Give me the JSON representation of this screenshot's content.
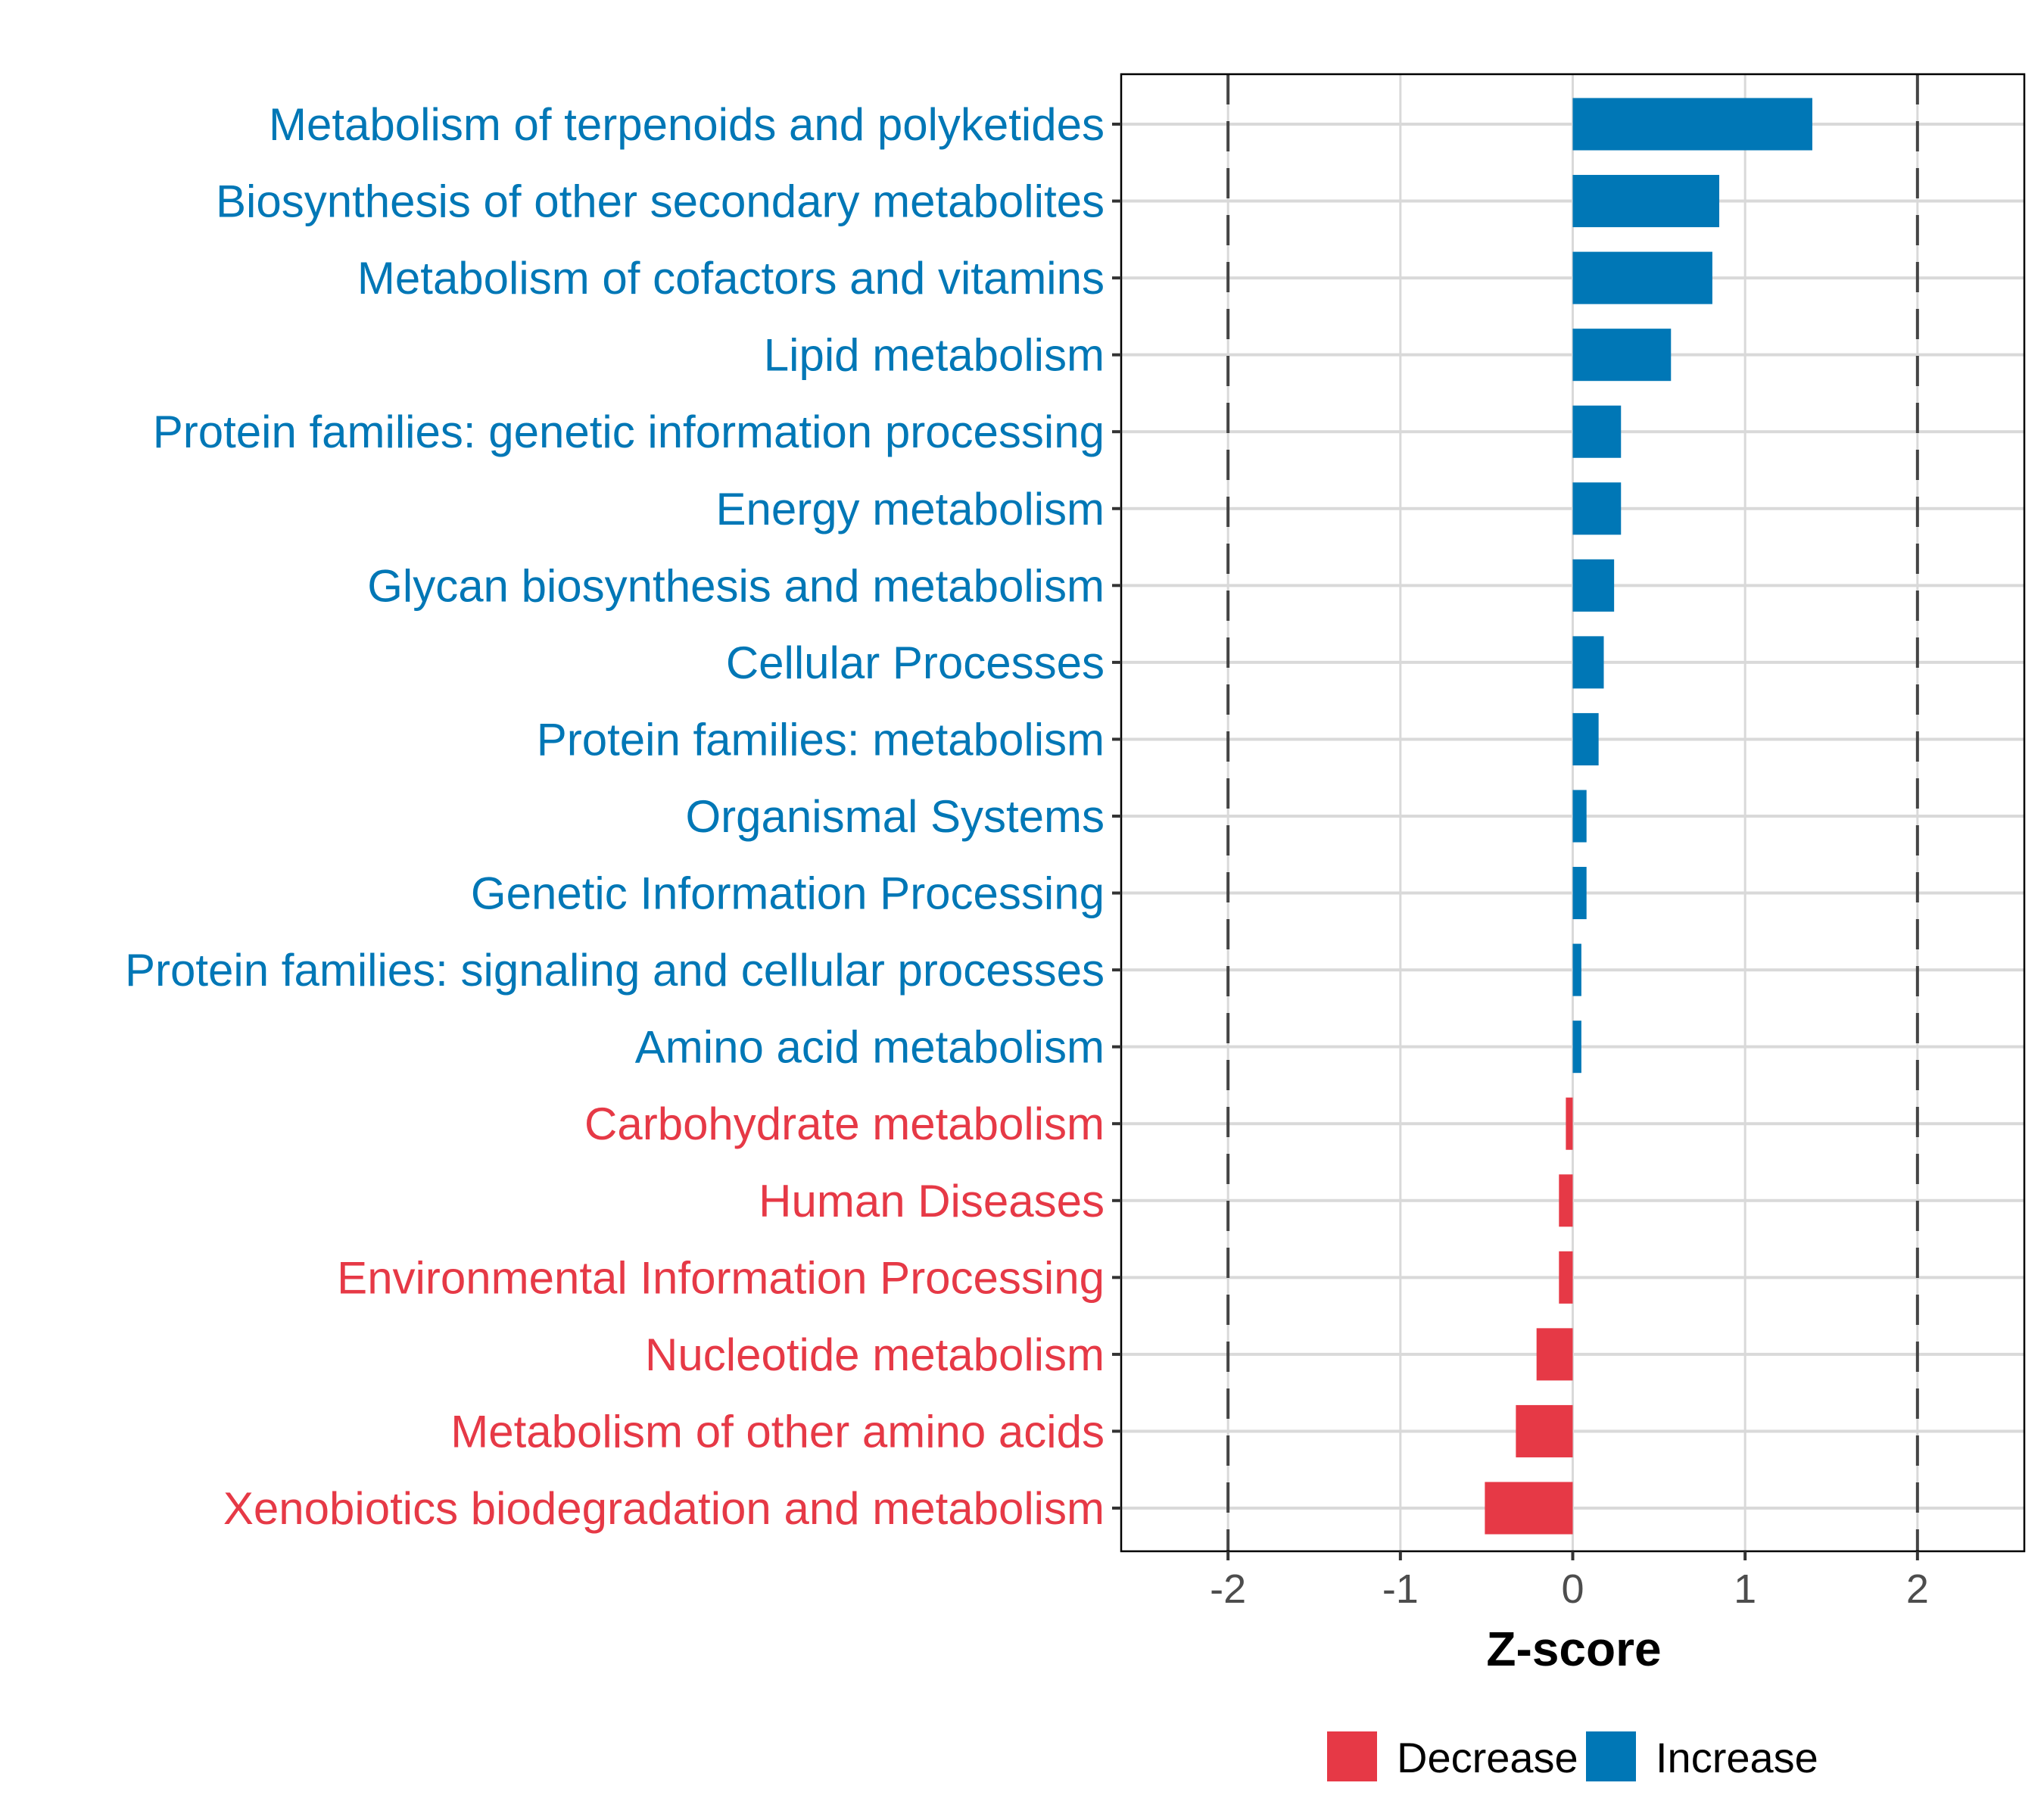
{
  "chart_data": {
    "type": "bar",
    "orientation": "horizontal",
    "title": "",
    "xlabel": "Z-score",
    "ylabel": "",
    "xlim": [
      -2.62,
      2.62
    ],
    "xticks": [
      -2,
      -1,
      0,
      1,
      2
    ],
    "xtick_labels": [
      "-2",
      "-1",
      "0",
      "1",
      "2"
    ],
    "reference_lines": [
      -2,
      2
    ],
    "grid": true,
    "legend_position": "bottom",
    "legend": [
      {
        "label": "Decrease",
        "color": "#E63946"
      },
      {
        "label": "Increase",
        "color": "#0077B6"
      }
    ],
    "categories": [
      "Metabolism of terpenoids and polyketides",
      "Biosynthesis of other secondary metabolites",
      "Metabolism of cofactors and vitamins",
      "Lipid metabolism",
      "Protein families: genetic information processing",
      "Energy metabolism",
      "Glycan biosynthesis and metabolism",
      "Cellular Processes",
      "Protein families: metabolism",
      "Organismal Systems",
      "Genetic Information Processing",
      "Protein families: signaling and cellular processes",
      "Amino acid metabolism",
      "Carbohydrate metabolism",
      "Human Diseases",
      "Environmental Information Processing",
      "Nucleotide metabolism",
      "Metabolism of other amino acids",
      "Xenobiotics biodegradation and metabolism"
    ],
    "values": [
      1.39,
      0.85,
      0.81,
      0.57,
      0.28,
      0.28,
      0.24,
      0.18,
      0.15,
      0.08,
      0.08,
      0.05,
      0.05,
      -0.04,
      -0.08,
      -0.08,
      -0.21,
      -0.33,
      -0.51
    ],
    "groups": [
      "Increase",
      "Increase",
      "Increase",
      "Increase",
      "Increase",
      "Increase",
      "Increase",
      "Increase",
      "Increase",
      "Increase",
      "Increase",
      "Increase",
      "Increase",
      "Decrease",
      "Decrease",
      "Decrease",
      "Decrease",
      "Decrease",
      "Decrease"
    ]
  }
}
